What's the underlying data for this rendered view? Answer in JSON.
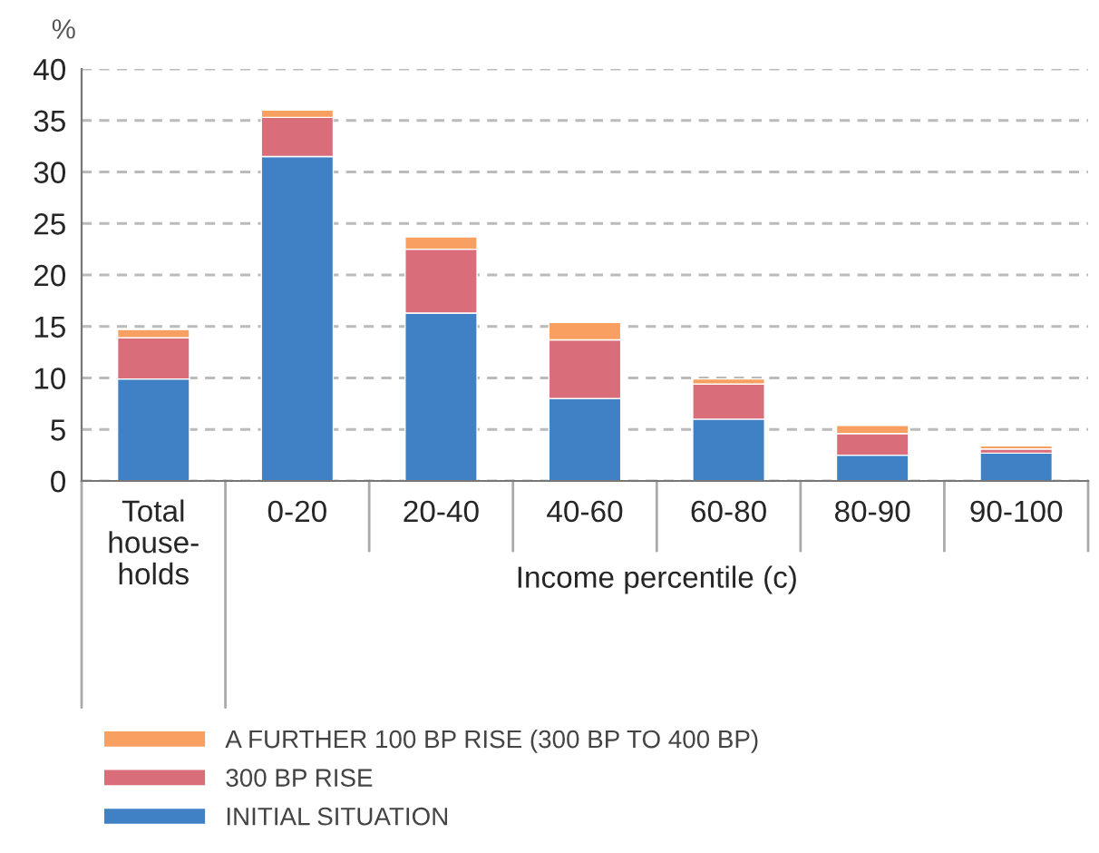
{
  "chart_data": {
    "type": "bar",
    "stacked": true,
    "ylabel": "%",
    "xlabel": "Income percentile (c)",
    "categories": [
      "Total house-holds",
      "0-20",
      "20-40",
      "40-60",
      "60-80",
      "80-90",
      "90-100"
    ],
    "series": [
      {
        "name": "INITIAL SITUATION",
        "color": "#4080c4",
        "values": [
          9.9,
          31.5,
          16.3,
          8.0,
          6.0,
          2.5,
          2.7
        ]
      },
      {
        "name": "300 BP RISE",
        "color": "#d96d7a",
        "values": [
          4.0,
          3.8,
          6.2,
          5.7,
          3.4,
          2.1,
          0.4
        ]
      },
      {
        "name": "A FURTHER 100 BP RISE (300 BP TO 400 BP)",
        "color": "#f7a062",
        "values": [
          0.8,
          0.7,
          1.2,
          1.7,
          0.5,
          0.8,
          0.3
        ]
      }
    ],
    "ylim": [
      0,
      40
    ],
    "yticks": [
      0,
      5,
      10,
      15,
      20,
      25,
      30,
      35,
      40
    ],
    "grid": "y",
    "legend": "bottom"
  }
}
